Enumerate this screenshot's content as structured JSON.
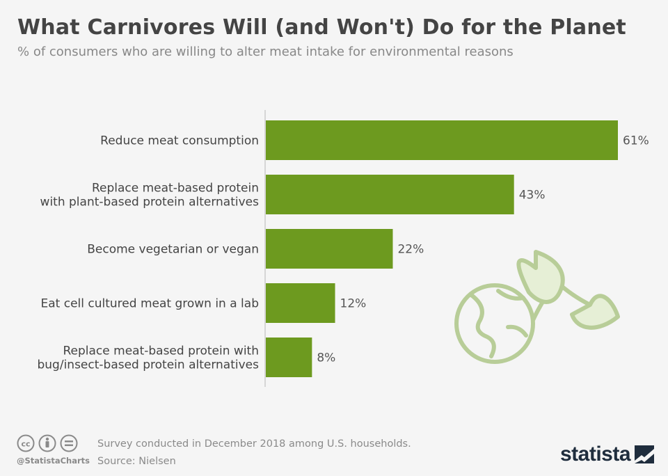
{
  "header": {
    "title": "What Carnivores Will (and Won't) Do for the Planet",
    "subtitle": "% of consumers who are willing to alter meat intake for environmental reasons"
  },
  "chart_data": {
    "type": "bar",
    "orientation": "horizontal",
    "categories": [
      [
        "Reduce meat consumption"
      ],
      [
        "Replace meat-based protein",
        "with plant-based protein alternatives"
      ],
      [
        "Become vegetarian or vegan"
      ],
      [
        "Eat cell cultured meat grown in a lab"
      ],
      [
        "Replace meat-based protein with",
        "bug/insect-based protein alternatives"
      ]
    ],
    "values": [
      61,
      43,
      22,
      12,
      8
    ],
    "value_labels": [
      "61%",
      "43%",
      "22%",
      "12%",
      "8%"
    ],
    "bar_color": "#6d9a1f",
    "grid": false
  },
  "illustration": {
    "icon": "earth-sprout-icon",
    "color": "#b8cd98"
  },
  "footer": {
    "note": "Survey conducted in December 2018 among U.S. households.",
    "source": "Source: Nielsen",
    "handle": "@StatistaCharts",
    "brand": "statista"
  }
}
